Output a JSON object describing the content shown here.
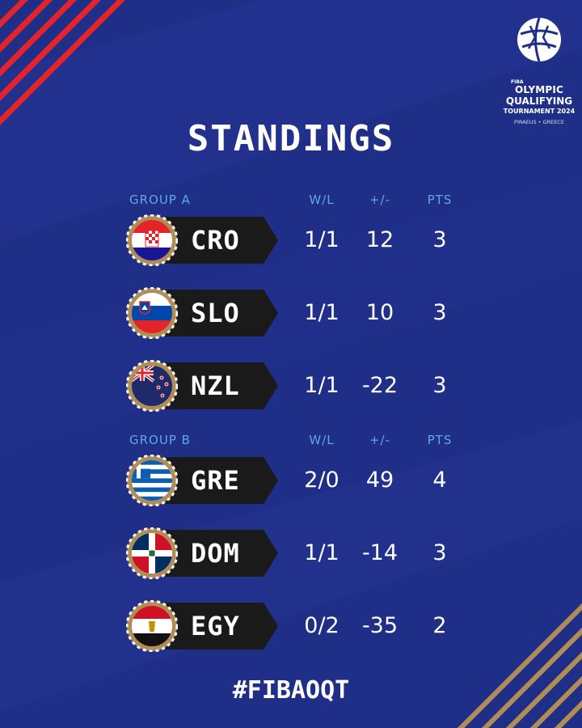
{
  "title": "STANDINGS",
  "hashtag": "#FIBAOQT",
  "logo": {
    "small": "FIBA",
    "line1": "OLYMPIC",
    "line2": "QUALIFYING",
    "line3": "TOURNAMENT 2024",
    "line4": "PIRAEUS • GREECE"
  },
  "columns": {
    "wl": "W/L",
    "pm": "+/-",
    "pts": "PTS"
  },
  "groups": [
    {
      "label": "GROUP A",
      "teams": [
        {
          "code": "CRO",
          "wl": "1/1",
          "pm": "12",
          "pts": "3",
          "flag": "croatia-flag"
        },
        {
          "code": "SLO",
          "wl": "1/1",
          "pm": "10",
          "pts": "3",
          "flag": "slovenia-flag"
        },
        {
          "code": "NZL",
          "wl": "1/1",
          "pm": "-22",
          "pts": "3",
          "flag": "new-zealand-flag"
        }
      ]
    },
    {
      "label": "GROUP B",
      "teams": [
        {
          "code": "GRE",
          "wl": "2/0",
          "pm": "49",
          "pts": "4",
          "flag": "greece-flag"
        },
        {
          "code": "DOM",
          "wl": "1/1",
          "pm": "-14",
          "pts": "3",
          "flag": "dominican-republic-flag"
        },
        {
          "code": "EGY",
          "wl": "0/2",
          "pm": "-35",
          "pts": "2",
          "flag": "egypt-flag"
        }
      ]
    }
  ],
  "colors": {
    "background": "#1f2e86",
    "header_blue": "#5fa8e8",
    "stripe_red": "#e3242b",
    "stripe_gold": "#b08d57",
    "plate": "#1a1a1a"
  }
}
